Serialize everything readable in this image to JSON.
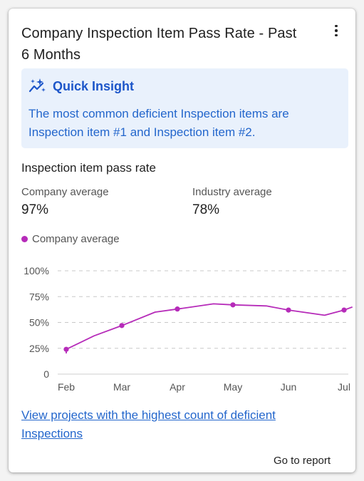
{
  "card": {
    "title": "Company Inspection Item Pass Rate - Past 6 Months",
    "menu_icon": "kebab-menu-icon"
  },
  "insight": {
    "icon": "sparkle-chart-icon",
    "title": "Quick Insight",
    "text": "The most common deficient Inspection items are Inspection item #1 and Inspection item #2."
  },
  "section": {
    "title": "Inspection item pass rate",
    "company_label": "Company average",
    "company_value": "97%",
    "industry_label": "Industry average",
    "industry_value": "78%"
  },
  "colors": {
    "series": "#b62bb9",
    "insight_bg": "#e9f1fc",
    "insight_text": "#2366cc",
    "link": "#2366cc"
  },
  "chart_data": {
    "type": "line",
    "legend": [
      "Company average"
    ],
    "x_ticks": [
      "Feb",
      "Mar",
      "Apr",
      "May",
      "Jun",
      "Jul"
    ],
    "y_ticks": [
      "0",
      "25%",
      "50%",
      "75%",
      "100%"
    ],
    "ylim": [
      0,
      100
    ],
    "grid": true,
    "series": [
      {
        "name": "Company average",
        "line": [
          {
            "x": 0.0,
            "y": 20
          },
          {
            "x": 0.0,
            "y": 24
          },
          {
            "x": 0.5,
            "y": 37
          },
          {
            "x": 1.0,
            "y": 47
          },
          {
            "x": 1.6,
            "y": 60
          },
          {
            "x": 2.0,
            "y": 63
          },
          {
            "x": 2.65,
            "y": 68
          },
          {
            "x": 3.0,
            "y": 67
          },
          {
            "x": 3.6,
            "y": 66
          },
          {
            "x": 4.0,
            "y": 62
          },
          {
            "x": 4.65,
            "y": 57
          },
          {
            "x": 5.0,
            "y": 62
          },
          {
            "x": 5.15,
            "y": 65
          }
        ],
        "markers": [
          {
            "x": 0,
            "y": 24
          },
          {
            "x": 1,
            "y": 47
          },
          {
            "x": 2,
            "y": 63
          },
          {
            "x": 3,
            "y": 67
          },
          {
            "x": 4,
            "y": 62
          },
          {
            "x": 5,
            "y": 62
          }
        ]
      }
    ]
  },
  "footer": {
    "link_text": "View projects with the highest count of deficient Inspections",
    "goto_label": "Go to report"
  }
}
